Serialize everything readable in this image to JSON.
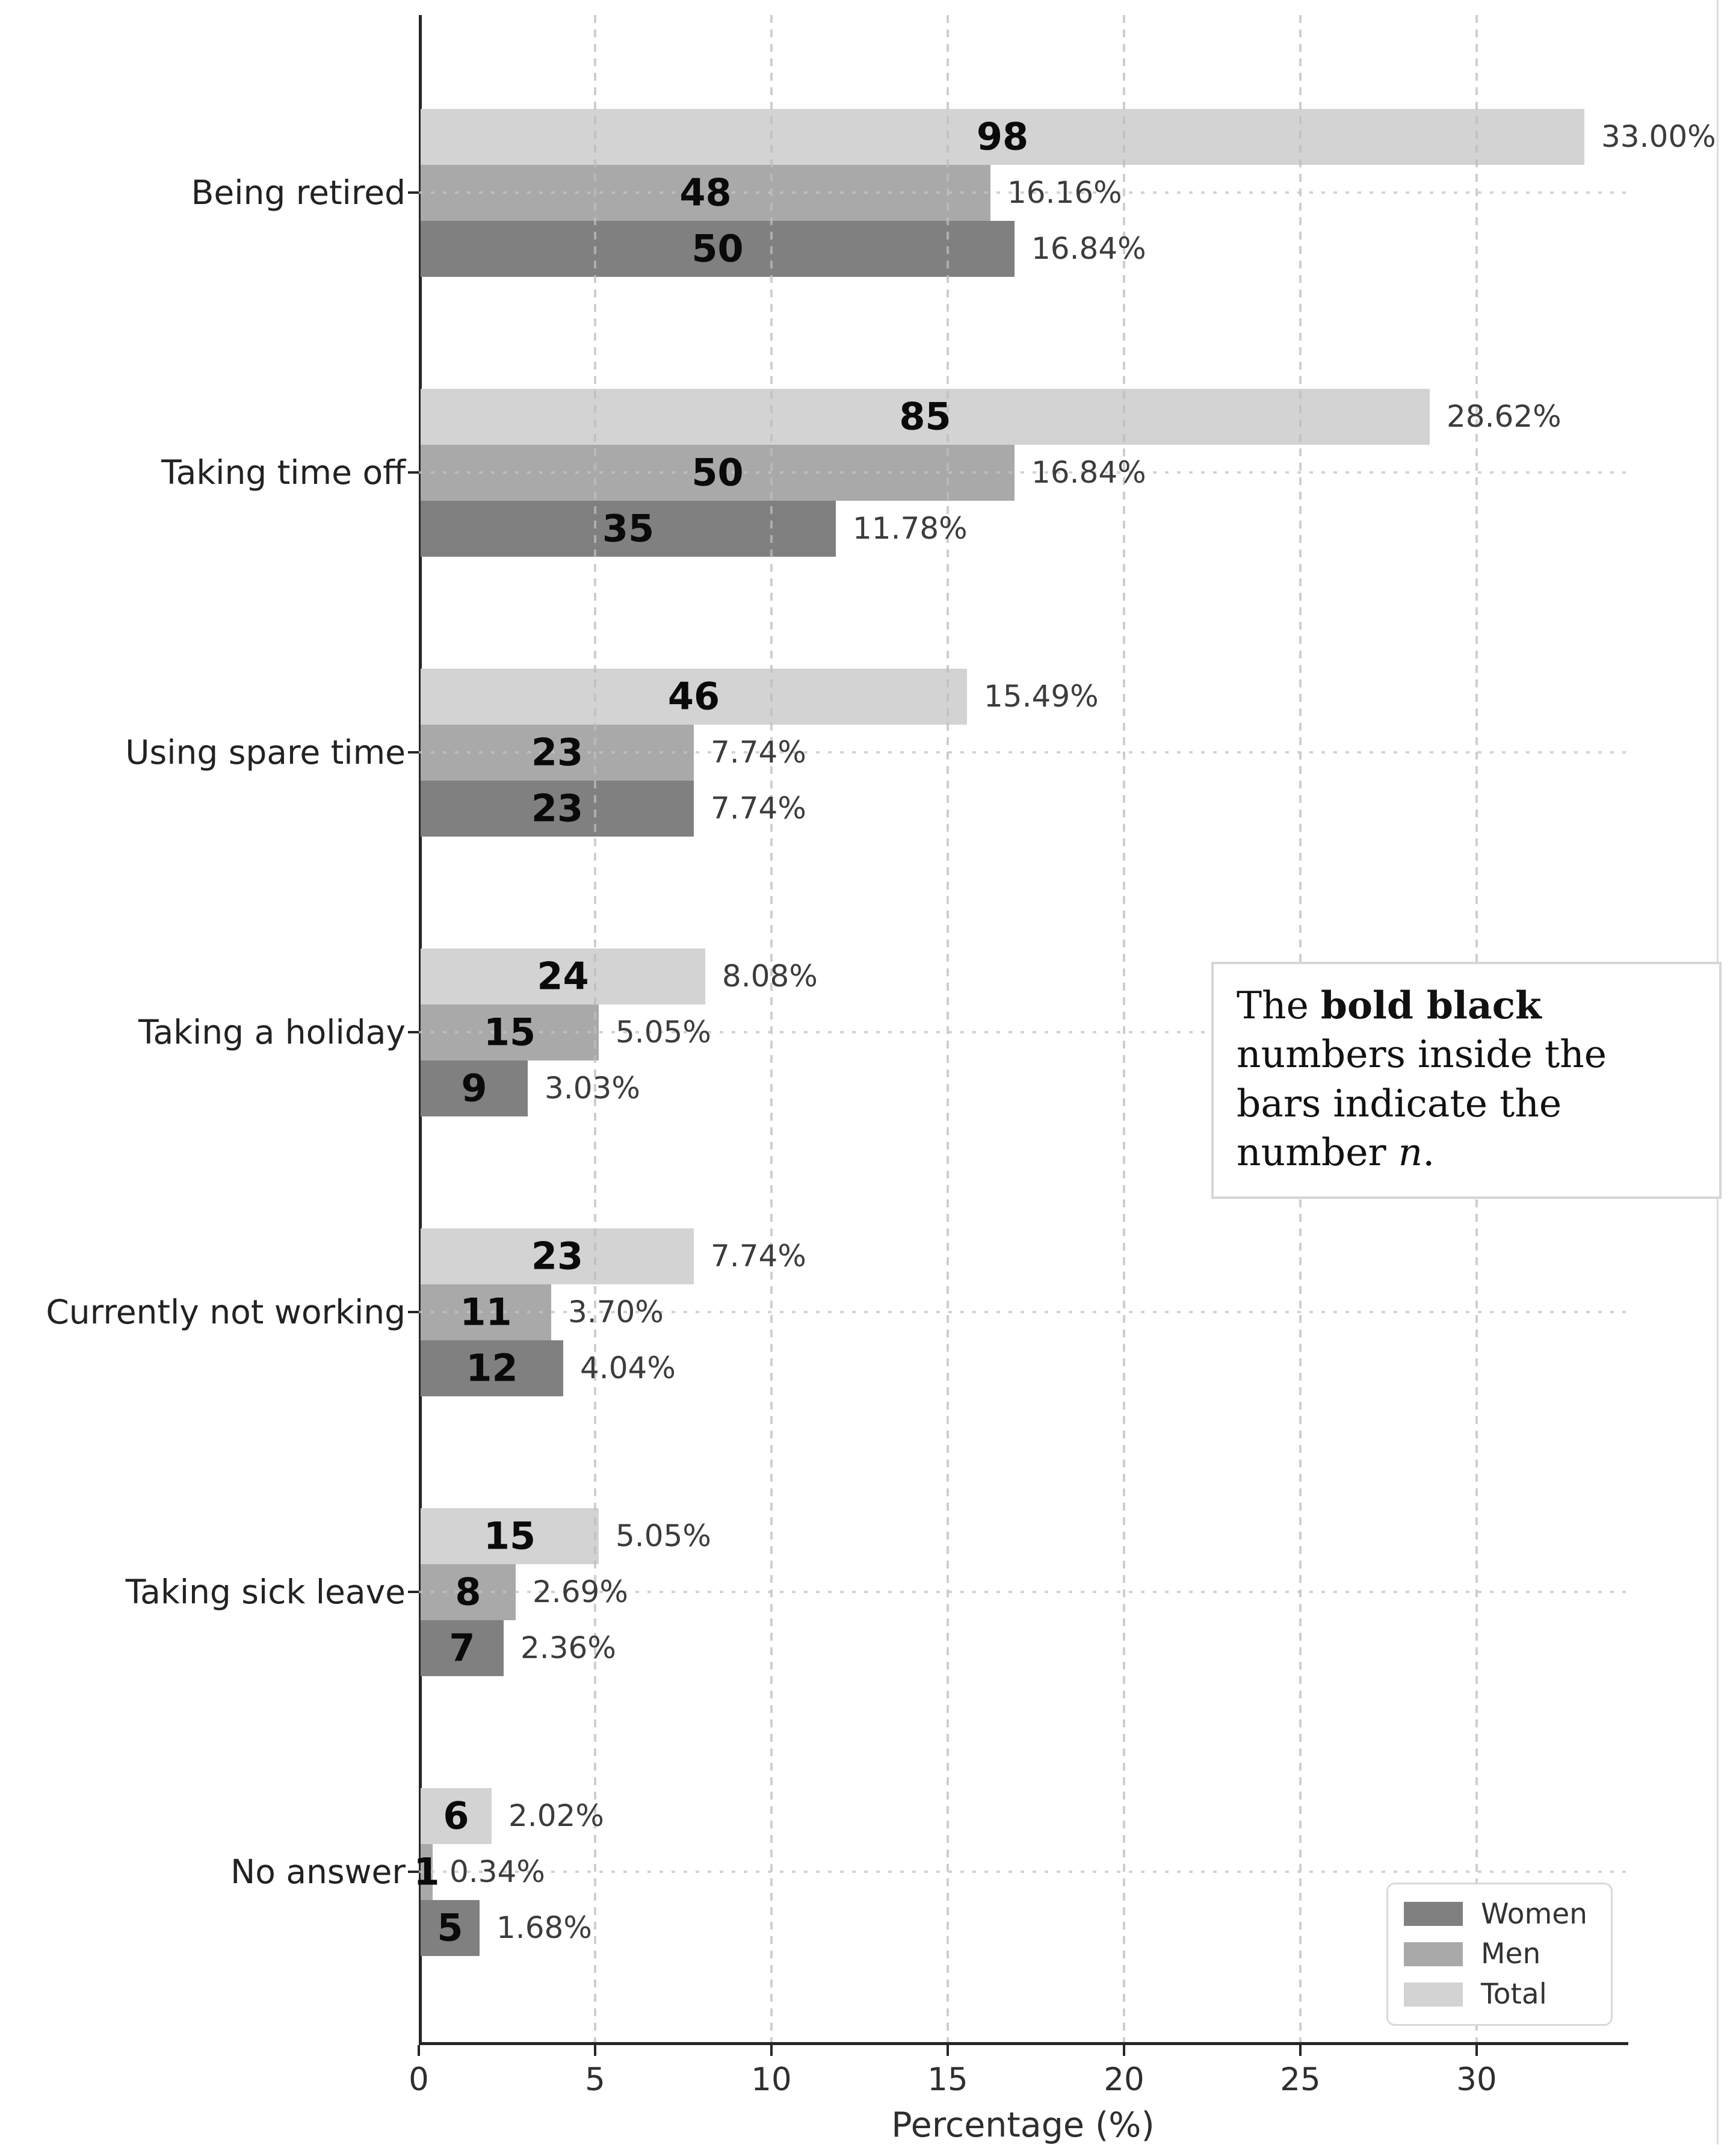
{
  "figure": {
    "background": "#ffffff"
  },
  "chart_data": {
    "type": "bar",
    "orientation": "horizontal",
    "title": "",
    "xlabel": "Percentage (%)",
    "ylabel": "",
    "xlim": [
      0,
      34.3
    ],
    "xticks": [
      "0",
      "5",
      "10",
      "15",
      "20",
      "25",
      "30"
    ],
    "xtick_values": [
      0,
      5,
      10,
      15,
      20,
      25,
      30
    ],
    "grid": {
      "vertical": "dashed",
      "horizontal": "dotted",
      "drawn_over_bars": true
    },
    "row_order_top_to_bottom": [
      "Total",
      "Men",
      "Women"
    ],
    "categories": [
      "Being retired",
      "Taking time off",
      "Using spare time",
      "Taking a holiday",
      "Currently not working",
      "Taking sick leave",
      "No answer"
    ],
    "series": [
      {
        "name": "Total",
        "color": "#d3d3d3",
        "counts": [
          98,
          85,
          46,
          24,
          23,
          15,
          6
        ],
        "percents": [
          33.0,
          28.62,
          15.49,
          8.08,
          7.74,
          5.05,
          2.02
        ],
        "percent_labels": [
          "33.00%",
          "28.62%",
          "15.49%",
          "8.08%",
          "7.74%",
          "5.05%",
          "2.02%"
        ]
      },
      {
        "name": "Men",
        "color": "#a9a9a9",
        "counts": [
          48,
          50,
          23,
          15,
          11,
          8,
          1
        ],
        "percents": [
          16.16,
          16.84,
          7.74,
          5.05,
          3.7,
          2.69,
          0.34
        ],
        "percent_labels": [
          "16.16%",
          "16.84%",
          "7.74%",
          "5.05%",
          "3.70%",
          "2.69%",
          "0.34%"
        ]
      },
      {
        "name": "Women",
        "color": "#808080",
        "counts": [
          50,
          35,
          23,
          9,
          12,
          7,
          5
        ],
        "percents": [
          16.84,
          11.78,
          7.74,
          3.03,
          4.04,
          2.36,
          1.68
        ],
        "percent_labels": [
          "16.84%",
          "11.78%",
          "7.74%",
          "3.03%",
          "4.04%",
          "2.36%",
          "1.68%"
        ]
      }
    ],
    "legend": {
      "position": "lower right",
      "entries": [
        {
          "label": "Women",
          "color": "#808080"
        },
        {
          "label": "Men",
          "color": "#a9a9a9"
        },
        {
          "label": "Total",
          "color": "#d3d3d3"
        }
      ]
    }
  },
  "annotation": {
    "full_text": "The bold black numbers inside the bars indicate the number n.",
    "lines": [
      [
        {
          "t": "The ",
          "s": "r"
        },
        {
          "t": "bold black",
          "s": "b"
        }
      ],
      [
        {
          "t": "numbers inside the",
          "s": "r"
        }
      ],
      [
        {
          "t": "bars indicate the",
          "s": "r"
        }
      ],
      [
        {
          "t": "number ",
          "s": "r"
        },
        {
          "t": "n",
          "s": "i"
        },
        {
          "t": ".",
          "s": "r"
        }
      ]
    ]
  },
  "colors": {
    "background": "#ffffff",
    "spine": "#262626",
    "grid": "#c4c4c4",
    "count_label": "#0a0a0a",
    "percent_label": "#3c3c3c",
    "category_label": "#222222",
    "tick_label": "#2e2e2e",
    "annotation_border": "#d6d6d6",
    "legend_border": "#d9d9d9",
    "page_edge_line": "#dcdcdc"
  }
}
